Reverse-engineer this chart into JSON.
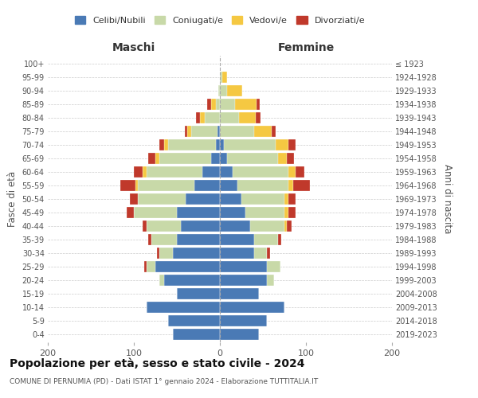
{
  "age_groups": [
    "0-4",
    "5-9",
    "10-14",
    "15-19",
    "20-24",
    "25-29",
    "30-34",
    "35-39",
    "40-44",
    "45-49",
    "50-54",
    "55-59",
    "60-64",
    "65-69",
    "70-74",
    "75-79",
    "80-84",
    "85-89",
    "90-94",
    "95-99",
    "100+"
  ],
  "birth_years": [
    "2019-2023",
    "2014-2018",
    "2009-2013",
    "2004-2008",
    "1999-2003",
    "1994-1998",
    "1989-1993",
    "1984-1988",
    "1979-1983",
    "1974-1978",
    "1969-1973",
    "1964-1968",
    "1959-1963",
    "1954-1958",
    "1949-1953",
    "1944-1948",
    "1939-1943",
    "1934-1938",
    "1929-1933",
    "1924-1928",
    "≤ 1923"
  ],
  "colors": {
    "celibi": "#4a7ab5",
    "coniugati": "#c8d9a8",
    "vedovi": "#f5c842",
    "divorziati": "#c0392b"
  },
  "maschi": {
    "celibi": [
      55,
      60,
      85,
      50,
      65,
      75,
      55,
      50,
      45,
      50,
      40,
      30,
      20,
      10,
      5,
      3,
      0,
      0,
      0,
      0,
      0
    ],
    "coniugati": [
      0,
      0,
      0,
      0,
      5,
      10,
      15,
      30,
      40,
      50,
      55,
      65,
      65,
      60,
      55,
      30,
      18,
      5,
      2,
      0,
      0
    ],
    "vedovi": [
      0,
      0,
      0,
      0,
      0,
      0,
      0,
      0,
      0,
      0,
      0,
      3,
      5,
      5,
      5,
      5,
      5,
      5,
      0,
      0,
      0
    ],
    "divorziati": [
      0,
      0,
      0,
      0,
      0,
      3,
      3,
      3,
      5,
      8,
      10,
      18,
      10,
      8,
      5,
      3,
      5,
      5,
      0,
      0,
      0
    ]
  },
  "femmine": {
    "celibi": [
      45,
      55,
      75,
      45,
      55,
      55,
      40,
      40,
      35,
      30,
      25,
      20,
      15,
      8,
      5,
      0,
      0,
      0,
      0,
      0,
      0
    ],
    "coniugati": [
      0,
      0,
      0,
      0,
      8,
      15,
      15,
      28,
      40,
      45,
      50,
      60,
      65,
      60,
      60,
      40,
      22,
      18,
      8,
      3,
      0
    ],
    "vedovi": [
      0,
      0,
      0,
      0,
      0,
      0,
      0,
      0,
      3,
      5,
      5,
      5,
      8,
      10,
      15,
      20,
      20,
      25,
      18,
      5,
      0
    ],
    "divorziati": [
      0,
      0,
      0,
      0,
      0,
      0,
      3,
      3,
      5,
      8,
      8,
      20,
      10,
      8,
      8,
      5,
      5,
      3,
      0,
      0,
      0
    ]
  },
  "title": "Popolazione per età, sesso e stato civile - 2024",
  "subtitle": "COMUNE DI PERNUMIA (PD) - Dati ISTAT 1° gennaio 2024 - Elaborazione TUTTITALIA.IT",
  "xlabel_left": "Maschi",
  "xlabel_right": "Femmine",
  "ylabel_left": "Fasce di età",
  "ylabel_right": "Anni di nascita",
  "legend_labels": [
    "Celibi/Nubili",
    "Coniugati/e",
    "Vedovi/e",
    "Divorziati/e"
  ],
  "xlim": 200,
  "background_color": "#ffffff",
  "grid_color": "#cccccc"
}
